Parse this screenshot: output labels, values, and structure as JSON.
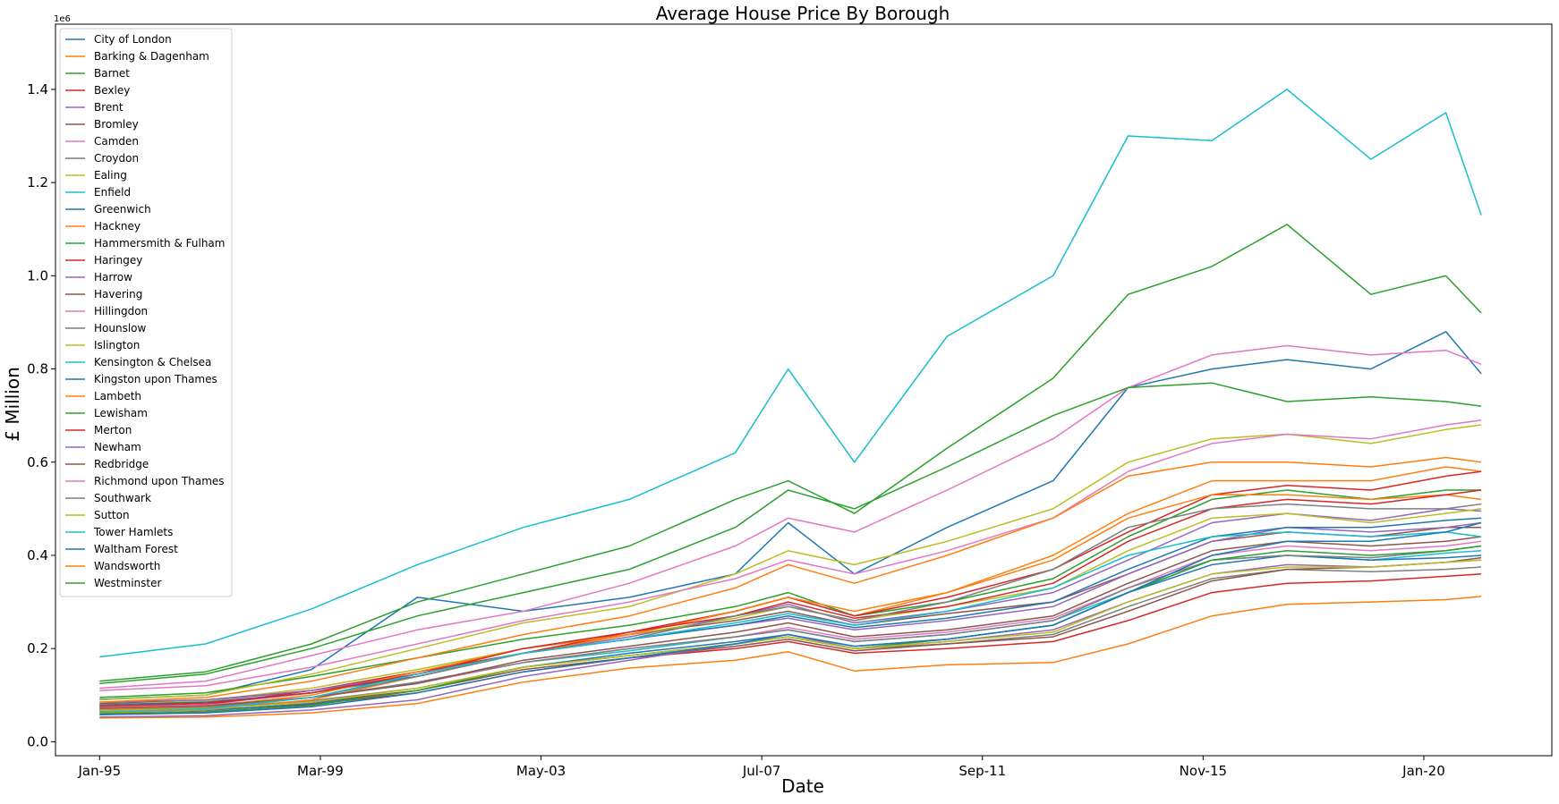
{
  "chart_data": {
    "type": "line",
    "title": "Average House Price By Borough",
    "xlabel": "Date",
    "ylabel": "£ Million",
    "y_offset_label": "1e6",
    "xlim": [
      "1994-03",
      "2022-06"
    ],
    "ylim": [
      -0.03,
      1.54
    ],
    "x_ticks": [
      {
        "date": "1995-01",
        "label": "Jan-95"
      },
      {
        "date": "1999-03",
        "label": "Mar-99"
      },
      {
        "date": "2003-05",
        "label": "May-03"
      },
      {
        "date": "2007-07",
        "label": "Jul-07"
      },
      {
        "date": "2011-09",
        "label": "Sep-11"
      },
      {
        "date": "2015-11",
        "label": "Nov-15"
      },
      {
        "date": "2020-01",
        "label": "Jan-20"
      }
    ],
    "y_ticks": [
      {
        "value": 0.0,
        "label": "0.0"
      },
      {
        "value": 0.2,
        "label": "0.2"
      },
      {
        "value": 0.4,
        "label": "0.4"
      },
      {
        "value": 0.6,
        "label": "0.6"
      },
      {
        "value": 0.8,
        "label": "0.8"
      },
      {
        "value": 1.0,
        "label": "1.0"
      },
      {
        "value": 1.2,
        "label": "1.2"
      },
      {
        "value": 1.4,
        "label": "1.4"
      }
    ],
    "grid": false,
    "legend_position": "top-left",
    "x": [
      "1995-01",
      "1997-01",
      "1999-01",
      "2001-01",
      "2003-01",
      "2005-01",
      "2007-01",
      "2008-01",
      "2009-04",
      "2011-01",
      "2013-01",
      "2014-06",
      "2016-01",
      "2017-06",
      "2019-01",
      "2020-06",
      "2021-02"
    ],
    "series": [
      {
        "name": "City of London",
        "color": "#1f77b4",
        "values": [
          0.091,
          0.1,
          0.155,
          0.31,
          0.28,
          0.31,
          0.36,
          0.47,
          0.36,
          0.46,
          0.56,
          0.76,
          0.8,
          0.82,
          0.8,
          0.88,
          0.79
        ]
      },
      {
        "name": "Barking & Dagenham",
        "color": "#ff7f0e",
        "values": [
          0.051,
          0.053,
          0.062,
          0.082,
          0.128,
          0.158,
          0.175,
          0.193,
          0.152,
          0.165,
          0.17,
          0.21,
          0.27,
          0.295,
          0.3,
          0.305,
          0.312
        ]
      },
      {
        "name": "Barnet",
        "color": "#2ca02c",
        "values": [
          0.095,
          0.105,
          0.14,
          0.18,
          0.22,
          0.25,
          0.29,
          0.32,
          0.27,
          0.3,
          0.35,
          0.44,
          0.52,
          0.54,
          0.52,
          0.54,
          0.54
        ]
      },
      {
        "name": "Bexley",
        "color": "#d62728",
        "values": [
          0.065,
          0.068,
          0.08,
          0.105,
          0.15,
          0.18,
          0.2,
          0.215,
          0.19,
          0.2,
          0.215,
          0.26,
          0.32,
          0.34,
          0.345,
          0.355,
          0.36
        ]
      },
      {
        "name": "Brent",
        "color": "#9467bd",
        "values": [
          0.073,
          0.08,
          0.105,
          0.145,
          0.19,
          0.225,
          0.27,
          0.295,
          0.255,
          0.28,
          0.32,
          0.39,
          0.47,
          0.49,
          0.475,
          0.5,
          0.495
        ]
      },
      {
        "name": "Bromley",
        "color": "#8c564b",
        "values": [
          0.082,
          0.088,
          0.11,
          0.14,
          0.19,
          0.23,
          0.26,
          0.28,
          0.25,
          0.275,
          0.3,
          0.36,
          0.43,
          0.45,
          0.44,
          0.46,
          0.46
        ]
      },
      {
        "name": "Camden",
        "color": "#e377c2",
        "values": [
          0.115,
          0.13,
          0.185,
          0.24,
          0.28,
          0.34,
          0.42,
          0.48,
          0.45,
          0.54,
          0.65,
          0.76,
          0.83,
          0.85,
          0.83,
          0.84,
          0.81
        ]
      },
      {
        "name": "Croydon",
        "color": "#7f7f7f",
        "values": [
          0.069,
          0.073,
          0.088,
          0.115,
          0.16,
          0.185,
          0.21,
          0.225,
          0.2,
          0.21,
          0.23,
          0.29,
          0.35,
          0.37,
          0.365,
          0.37,
          0.375
        ]
      },
      {
        "name": "Ealing",
        "color": "#bcbd22",
        "values": [
          0.079,
          0.088,
          0.115,
          0.155,
          0.2,
          0.23,
          0.265,
          0.29,
          0.26,
          0.29,
          0.33,
          0.41,
          0.48,
          0.49,
          0.47,
          0.49,
          0.5
        ]
      },
      {
        "name": "Enfield",
        "color": "#17becf",
        "values": [
          0.072,
          0.077,
          0.095,
          0.125,
          0.17,
          0.195,
          0.225,
          0.24,
          0.215,
          0.23,
          0.26,
          0.32,
          0.39,
          0.4,
          0.39,
          0.405,
          0.41
        ]
      },
      {
        "name": "Greenwich",
        "color": "#1f77b4",
        "values": [
          0.063,
          0.067,
          0.082,
          0.11,
          0.16,
          0.19,
          0.215,
          0.23,
          0.205,
          0.22,
          0.25,
          0.32,
          0.38,
          0.4,
          0.39,
          0.395,
          0.4
        ]
      },
      {
        "name": "Hackney",
        "color": "#ff7f0e",
        "values": [
          0.062,
          0.068,
          0.09,
          0.14,
          0.19,
          0.23,
          0.28,
          0.31,
          0.27,
          0.32,
          0.4,
          0.49,
          0.56,
          0.56,
          0.56,
          0.59,
          0.58
        ]
      },
      {
        "name": "Hammersmith & Fulham",
        "color": "#2ca02c",
        "values": [
          0.125,
          0.145,
          0.2,
          0.27,
          0.32,
          0.37,
          0.46,
          0.54,
          0.5,
          0.59,
          0.7,
          0.76,
          0.77,
          0.73,
          0.74,
          0.73,
          0.72
        ]
      },
      {
        "name": "Haringey",
        "color": "#d62728",
        "values": [
          0.075,
          0.08,
          0.11,
          0.15,
          0.19,
          0.235,
          0.28,
          0.31,
          0.27,
          0.31,
          0.37,
          0.45,
          0.53,
          0.55,
          0.54,
          0.57,
          0.58
        ]
      },
      {
        "name": "Harrow",
        "color": "#9467bd",
        "values": [
          0.085,
          0.09,
          0.11,
          0.145,
          0.19,
          0.22,
          0.25,
          0.265,
          0.24,
          0.26,
          0.29,
          0.36,
          0.43,
          0.46,
          0.45,
          0.46,
          0.47
        ]
      },
      {
        "name": "Havering",
        "color": "#8c564b",
        "values": [
          0.068,
          0.072,
          0.085,
          0.11,
          0.155,
          0.18,
          0.205,
          0.22,
          0.195,
          0.21,
          0.225,
          0.28,
          0.345,
          0.37,
          0.375,
          0.385,
          0.395
        ]
      },
      {
        "name": "Hillingdon",
        "color": "#e377c2",
        "values": [
          0.074,
          0.079,
          0.095,
          0.125,
          0.17,
          0.2,
          0.225,
          0.245,
          0.22,
          0.235,
          0.265,
          0.33,
          0.4,
          0.42,
          0.41,
          0.42,
          0.43
        ]
      },
      {
        "name": "Hounslow",
        "color": "#7f7f7f",
        "values": [
          0.071,
          0.076,
          0.095,
          0.128,
          0.17,
          0.2,
          0.225,
          0.24,
          0.215,
          0.23,
          0.26,
          0.33,
          0.39,
          0.4,
          0.395,
          0.41,
          0.42
        ]
      },
      {
        "name": "Islington",
        "color": "#bcbd22",
        "values": [
          0.09,
          0.1,
          0.145,
          0.2,
          0.255,
          0.29,
          0.36,
          0.41,
          0.38,
          0.43,
          0.5,
          0.6,
          0.65,
          0.66,
          0.64,
          0.67,
          0.68
        ]
      },
      {
        "name": "Kensington & Chelsea",
        "color": "#17becf",
        "values": [
          0.182,
          0.21,
          0.285,
          0.38,
          0.46,
          0.52,
          0.62,
          0.8,
          0.6,
          0.87,
          1.0,
          1.3,
          1.29,
          1.4,
          1.25,
          1.35,
          1.13
        ]
      },
      {
        "name": "Kingston upon Thames",
        "color": "#1f77b4",
        "values": [
          0.079,
          0.085,
          0.105,
          0.14,
          0.19,
          0.22,
          0.25,
          0.27,
          0.245,
          0.265,
          0.3,
          0.37,
          0.44,
          0.46,
          0.46,
          0.475,
          0.48
        ]
      },
      {
        "name": "Lambeth",
        "color": "#ff7f0e",
        "values": [
          0.07,
          0.076,
          0.1,
          0.15,
          0.2,
          0.23,
          0.28,
          0.31,
          0.28,
          0.32,
          0.39,
          0.48,
          0.53,
          0.53,
          0.52,
          0.53,
          0.52
        ]
      },
      {
        "name": "Lewisham",
        "color": "#2ca02c",
        "values": [
          0.06,
          0.064,
          0.078,
          0.11,
          0.16,
          0.185,
          0.21,
          0.225,
          0.2,
          0.22,
          0.25,
          0.32,
          0.39,
          0.41,
          0.4,
          0.41,
          0.42
        ]
      },
      {
        "name": "Merton",
        "color": "#d62728",
        "values": [
          0.076,
          0.083,
          0.105,
          0.145,
          0.2,
          0.235,
          0.27,
          0.3,
          0.265,
          0.29,
          0.34,
          0.43,
          0.5,
          0.52,
          0.51,
          0.53,
          0.54
        ]
      },
      {
        "name": "Newham",
        "color": "#9467bd",
        "values": [
          0.053,
          0.056,
          0.068,
          0.09,
          0.14,
          0.175,
          0.21,
          0.23,
          0.2,
          0.215,
          0.24,
          0.3,
          0.36,
          0.38,
          0.375,
          0.385,
          0.39
        ]
      },
      {
        "name": "Redbridge",
        "color": "#8c564b",
        "values": [
          0.072,
          0.077,
          0.095,
          0.125,
          0.175,
          0.205,
          0.235,
          0.255,
          0.225,
          0.24,
          0.27,
          0.34,
          0.41,
          0.43,
          0.42,
          0.43,
          0.44
        ]
      },
      {
        "name": "Richmond upon Thames",
        "color": "#e377c2",
        "values": [
          0.11,
          0.12,
          0.16,
          0.21,
          0.26,
          0.3,
          0.35,
          0.39,
          0.36,
          0.41,
          0.48,
          0.58,
          0.64,
          0.66,
          0.65,
          0.68,
          0.69
        ]
      },
      {
        "name": "Southwark",
        "color": "#7f7f7f",
        "values": [
          0.067,
          0.073,
          0.095,
          0.14,
          0.19,
          0.22,
          0.27,
          0.29,
          0.26,
          0.3,
          0.37,
          0.46,
          0.5,
          0.51,
          0.5,
          0.5,
          0.51
        ]
      },
      {
        "name": "Sutton",
        "color": "#bcbd22",
        "values": [
          0.067,
          0.071,
          0.085,
          0.115,
          0.16,
          0.185,
          0.21,
          0.225,
          0.2,
          0.215,
          0.235,
          0.3,
          0.36,
          0.375,
          0.375,
          0.385,
          0.39
        ]
      },
      {
        "name": "Tower Hamlets",
        "color": "#17becf",
        "values": [
          0.064,
          0.07,
          0.095,
          0.145,
          0.19,
          0.22,
          0.255,
          0.275,
          0.25,
          0.28,
          0.33,
          0.4,
          0.44,
          0.45,
          0.44,
          0.45,
          0.44
        ]
      },
      {
        "name": "Waltham Forest",
        "color": "#1f77b4",
        "values": [
          0.058,
          0.062,
          0.075,
          0.105,
          0.15,
          0.18,
          0.21,
          0.23,
          0.205,
          0.22,
          0.25,
          0.32,
          0.4,
          0.43,
          0.43,
          0.45,
          0.47
        ]
      },
      {
        "name": "Wandsworth",
        "color": "#ff7f0e",
        "values": [
          0.085,
          0.095,
          0.13,
          0.18,
          0.23,
          0.27,
          0.33,
          0.38,
          0.34,
          0.4,
          0.48,
          0.57,
          0.6,
          0.6,
          0.59,
          0.61,
          0.6
        ]
      },
      {
        "name": "Westminster",
        "color": "#2ca02c",
        "values": [
          0.13,
          0.15,
          0.21,
          0.3,
          0.36,
          0.42,
          0.52,
          0.56,
          0.49,
          0.63,
          0.78,
          0.96,
          1.02,
          1.11,
          0.96,
          1.0,
          0.92
        ]
      }
    ]
  }
}
